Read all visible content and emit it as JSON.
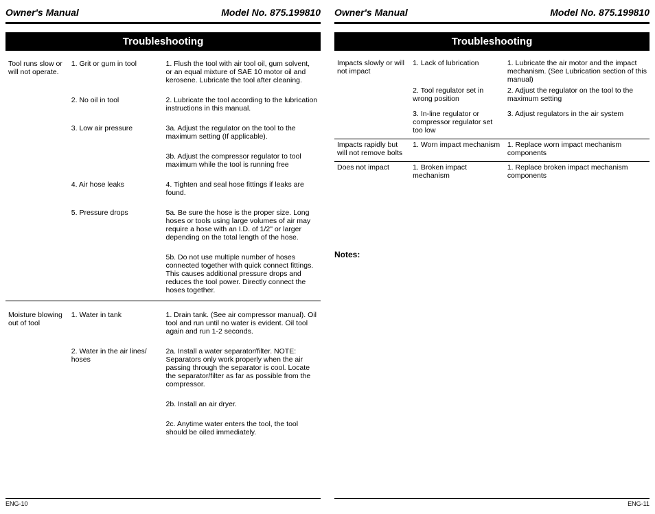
{
  "header": {
    "owners_manual": "Owner's Manual",
    "model_no": "Model No. 875.199810"
  },
  "section_title": "Troubleshooting",
  "left_page": {
    "footer": "ENG-10",
    "groups": [
      {
        "problem": "Tool runs slow or will not operate.",
        "rows": [
          {
            "cause": "1. Grit or gum in tool",
            "solution": "1. Flush the tool with air tool oil, gum solvent, or an equal mixture of SAE 10 motor oil and kerosene. Lubricate the tool after cleaning."
          },
          {
            "cause": "2. No oil in tool",
            "solution": "2. Lubricate the tool according to the lubrication instructions in this manual."
          },
          {
            "cause": "3. Low air pressure",
            "solution": "3a. Adjust the regulator on the tool to the maximum setting (If applicable)."
          },
          {
            "cause": "",
            "solution": "3b. Adjust the compressor regulator to tool maximum while the tool is running free"
          },
          {
            "cause": "4. Air hose leaks",
            "solution": "4. Tighten and seal hose fittings if leaks are found."
          },
          {
            "cause": "5. Pressure drops",
            "solution": "5a. Be sure the hose is the proper size. Long hoses or tools using large volumes of air may require a hose with an I.D. of 1/2\" or larger depending on the total length of the hose."
          },
          {
            "cause": "",
            "solution": "5b. Do not use multiple number of hoses connected together with quick connect fittings. This causes additional pressure drops and reduces the tool power. Directly connect the hoses together."
          }
        ]
      },
      {
        "problem": "Moisture blowing out of tool",
        "rows": [
          {
            "cause": "1. Water in tank",
            "solution": "1. Drain tank. (See air compressor manual). Oil tool and run until no water is evident. Oil tool again and run 1-2 seconds."
          },
          {
            "cause": "2. Water in the air lines/ hoses",
            "solution": "2a. Install a water separator/filter. NOTE: Separators only work properly when the air passing through the separator is cool. Locate the separator/filter as far as possible from the compressor."
          },
          {
            "cause": "",
            "solution": "2b. Install an air dryer."
          },
          {
            "cause": "",
            "solution": "2c. Anytime water enters the tool, the tool should be oiled immediately."
          }
        ]
      }
    ]
  },
  "right_page": {
    "footer": "ENG-11",
    "notes_label": "Notes:",
    "groups": [
      {
        "problem": "Impacts slowly or will not impact",
        "rows": [
          {
            "cause": "1. Lack of lubrication",
            "solution": "1. Lubricate the air motor and the impact mechanism. (See Lubrication section of this manual)"
          },
          {
            "cause": "2. Tool regulator set in wrong position",
            "solution": "2. Adjust the regulator on the tool to the maximum setting"
          },
          {
            "cause": "3. In-line regulator or compressor regulator set too low",
            "solution": "3. Adjust regulators in the air system"
          }
        ]
      },
      {
        "problem": "Impacts rapidly but will not remove bolts",
        "rows": [
          {
            "cause": "1. Worn impact mechanism",
            "solution": "1. Replace worn impact mechanism components"
          }
        ]
      },
      {
        "problem": "Does not impact",
        "rows": [
          {
            "cause": "1. Broken impact mechanism",
            "solution": "1. Replace broken impact mechanism components"
          }
        ]
      }
    ]
  }
}
